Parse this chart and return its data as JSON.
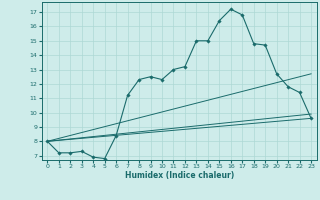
{
  "xlabel": "Humidex (Indice chaleur)",
  "ylabel": "",
  "xlim": [
    -0.5,
    23.5
  ],
  "ylim": [
    6.7,
    17.7
  ],
  "yticks": [
    7,
    8,
    9,
    10,
    11,
    12,
    13,
    14,
    15,
    16,
    17
  ],
  "xticks": [
    0,
    1,
    2,
    3,
    4,
    5,
    6,
    7,
    8,
    9,
    10,
    11,
    12,
    13,
    14,
    15,
    16,
    17,
    18,
    19,
    20,
    21,
    22,
    23
  ],
  "bg_color": "#ceecea",
  "line_color": "#1a6b6b",
  "grid_color": "#aed8d5",
  "main_curve": {
    "x": [
      0,
      1,
      2,
      3,
      4,
      5,
      6,
      7,
      8,
      9,
      10,
      11,
      12,
      13,
      14,
      15,
      16,
      17,
      18,
      19,
      20,
      21,
      22,
      23
    ],
    "y": [
      8.0,
      7.2,
      7.2,
      7.3,
      6.9,
      6.8,
      8.4,
      11.2,
      12.3,
      12.5,
      12.3,
      13.0,
      13.2,
      15.0,
      15.0,
      16.4,
      17.2,
      16.8,
      14.8,
      14.7,
      12.7,
      11.8,
      11.4,
      9.6
    ]
  },
  "ref_lines": [
    {
      "x": [
        0,
        23
      ],
      "y": [
        8.0,
        9.6
      ]
    },
    {
      "x": [
        0,
        23
      ],
      "y": [
        8.0,
        9.9
      ]
    },
    {
      "x": [
        0,
        23
      ],
      "y": [
        8.0,
        12.7
      ]
    }
  ]
}
